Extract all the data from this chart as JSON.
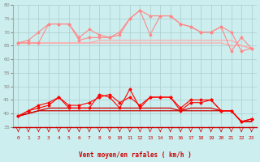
{
  "x": [
    0,
    1,
    2,
    3,
    4,
    5,
    6,
    7,
    8,
    9,
    10,
    11,
    12,
    13,
    14,
    15,
    16,
    17,
    18,
    19,
    20,
    21,
    22,
    23
  ],
  "upper_spiky1": [
    66,
    66,
    66,
    73,
    73,
    73,
    68,
    71,
    69,
    68,
    69,
    75,
    78,
    69,
    76,
    76,
    73,
    72,
    70,
    70,
    72,
    63,
    68,
    64
  ],
  "upper_spiky2": [
    66,
    67,
    70,
    73,
    73,
    73,
    67,
    68,
    68,
    68,
    70,
    75,
    78,
    76,
    76,
    76,
    73,
    72,
    70,
    70,
    72,
    70,
    63,
    64
  ],
  "upper_flat1": [
    66,
    66,
    66,
    66,
    66,
    66,
    66,
    66,
    67,
    67,
    67,
    67,
    67,
    67,
    67,
    67,
    67,
    67,
    67,
    67,
    67,
    67,
    65,
    64
  ],
  "upper_flat2": [
    66,
    66,
    66,
    66,
    66,
    66,
    66,
    66,
    66,
    66,
    66,
    66,
    66,
    66,
    66,
    66,
    66,
    66,
    66,
    66,
    66,
    65,
    65,
    64
  ],
  "lower_spiky1": [
    39,
    41,
    42,
    43,
    46,
    42,
    42,
    42,
    47,
    46,
    42,
    49,
    42,
    46,
    46,
    46,
    41,
    44,
    44,
    45,
    41,
    41,
    37,
    38
  ],
  "lower_spiky2": [
    39,
    41,
    43,
    44,
    46,
    43,
    43,
    44,
    46,
    47,
    44,
    46,
    43,
    46,
    46,
    46,
    42,
    45,
    45,
    45,
    41,
    41,
    37,
    38
  ],
  "lower_flat1": [
    39,
    40,
    41,
    42,
    42,
    42,
    42,
    42,
    42,
    42,
    42,
    42,
    42,
    42,
    42,
    42,
    41,
    42,
    42,
    42,
    41,
    41,
    37,
    37
  ],
  "lower_flat2": [
    39,
    40,
    41,
    41,
    41,
    41,
    41,
    41,
    41,
    41,
    41,
    41,
    41,
    41,
    41,
    41,
    41,
    41,
    41,
    41,
    41,
    41,
    37,
    37
  ],
  "color_light_pink": "#ffaaaa",
  "color_mid_pink": "#ff8888",
  "color_bright_red": "#ff0000",
  "color_dark_red": "#cc0000",
  "background": "#cceeee",
  "grid_color": "#aacccc",
  "xlabel": "Vent moyen/en rafales ( km/h )",
  "ylim": [
    35,
    80
  ],
  "yticks": [
    35,
    40,
    45,
    50,
    55,
    60,
    65,
    70,
    75,
    80
  ]
}
